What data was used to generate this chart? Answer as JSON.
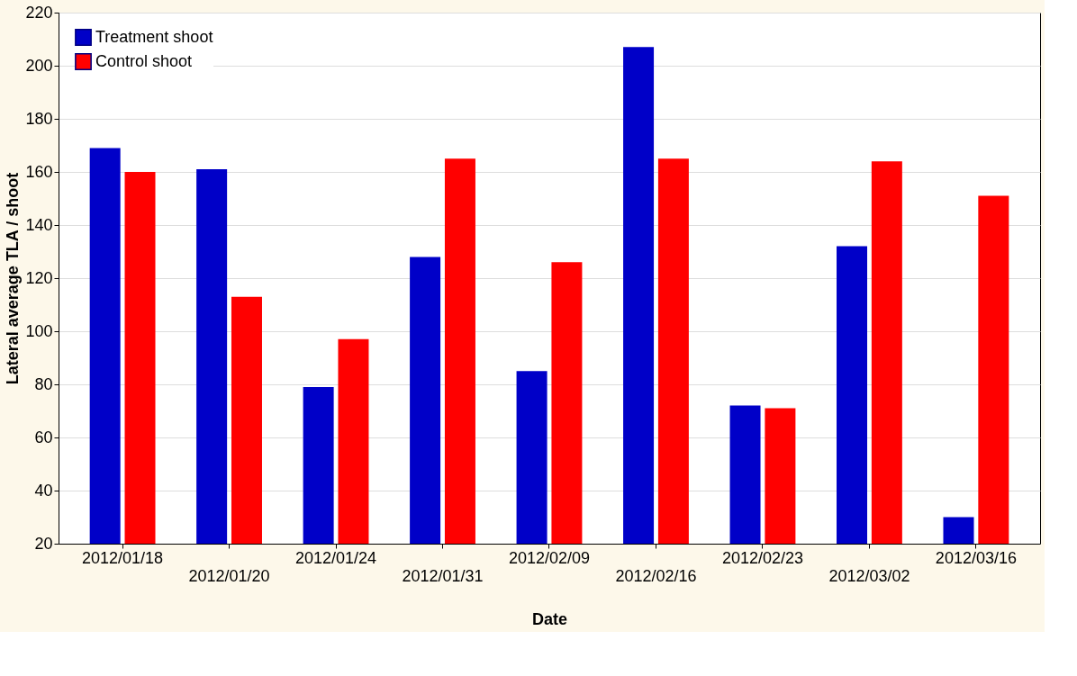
{
  "chart_data": {
    "type": "bar",
    "xlabel": "Date",
    "ylabel": "Lateral average TLA / shoot",
    "categories": [
      "2012/01/18",
      "2012/01/20",
      "2012/01/24",
      "2012/01/31",
      "2012/02/09",
      "2012/02/16",
      "2012/02/23",
      "2012/03/02",
      "2012/03/16"
    ],
    "series": [
      {
        "name": "Treatment shoot",
        "color": "#0000c8",
        "values": [
          169,
          161,
          79,
          128,
          85,
          207,
          72,
          132,
          30
        ]
      },
      {
        "name": "Control shoot",
        "color": "#ff0000",
        "values": [
          160,
          113,
          97,
          165,
          126,
          165,
          71,
          164,
          151
        ]
      }
    ],
    "ylim": [
      20,
      220
    ],
    "yticks": [
      20,
      40,
      60,
      80,
      100,
      120,
      140,
      160,
      180,
      200,
      220
    ],
    "grid": "y",
    "legend": "top left"
  }
}
